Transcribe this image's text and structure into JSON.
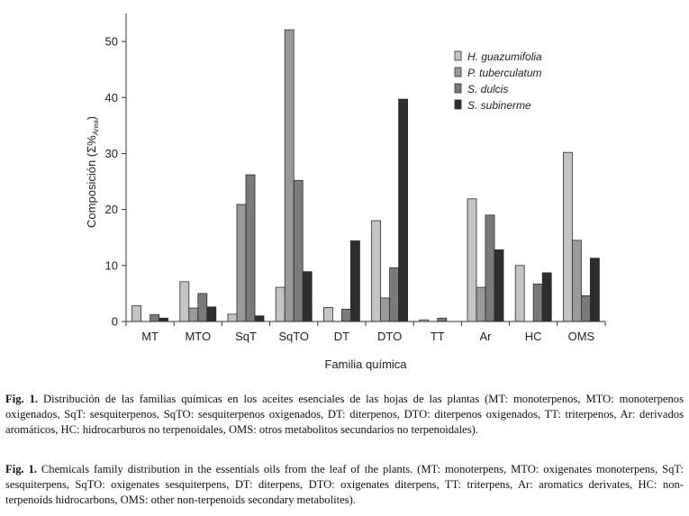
{
  "chart_data": {
    "type": "bar",
    "categories": [
      "MT",
      "MTO",
      "SqT",
      "SqTO",
      "DT",
      "DTO",
      "TT",
      "Ar",
      "HC",
      "OMS"
    ],
    "series": [
      {
        "name": "H. guazumifolia",
        "color": "#c4c4c4",
        "values": [
          2.8,
          7.1,
          1.3,
          6.1,
          2.5,
          18.0,
          0.3,
          21.9,
          10.0,
          30.2
        ]
      },
      {
        "name": "P. tuberculatum",
        "color": "#9a9a9a",
        "values": [
          0.0,
          2.4,
          20.9,
          52.1,
          0.0,
          4.2,
          0.0,
          6.1,
          0.0,
          14.5
        ]
      },
      {
        "name": "S. dulcis",
        "color": "#7a7a7a",
        "values": [
          1.2,
          5.0,
          26.2,
          25.2,
          2.2,
          9.6,
          0.6,
          19.0,
          6.7,
          4.6
        ]
      },
      {
        "name": "S. subinerme",
        "color": "#2e2e2e",
        "values": [
          0.6,
          2.6,
          1.0,
          8.9,
          14.4,
          39.7,
          0.0,
          12.8,
          8.7,
          11.3
        ]
      }
    ],
    "xlabel": "Familia química",
    "ylabel_main": "Composición (Σ%",
    "ylabel_sub": "Area",
    "ylabel_end": ")",
    "ylim": [
      0,
      55
    ],
    "yticks": [
      0,
      10,
      20,
      30,
      40,
      50
    ],
    "grid": false,
    "legend_position": "top-right"
  },
  "caption": {
    "es_label": "Fig. 1.",
    "es_text": " Distribución de las familias químicas en los aceites esenciales de las hojas de las plantas (MT: monoterpenos, MTO: monoterpenos oxigenados, SqT: sesquiterpenos, SqTO: sesquiterpenos oxigenados, DT: diterpenos, DTO: diterpenos oxigenados, TT: triterpenos, Ar: derivados aromáticos, HC: hidrocarburos no terpenoidales, OMS: otros metabolitos secundarios no terpenoidales).",
    "en_label": "Fig. 1.",
    "en_text": " Chemicals family distribution in the essentials oils from the leaf of the plants. (MT: monoterpens, MTO: oxigenates monoterpens, SqT: sesquiterpens, SqTO: oxigenates sesquiterpens, DT: diterpens, DTO: oxigenates diterpens, TT: triterpens, Ar: aromatics derivates, HC: non-terpenoids hidrocarbons, OMS: other non-terpenoids secondary metabolites)."
  }
}
